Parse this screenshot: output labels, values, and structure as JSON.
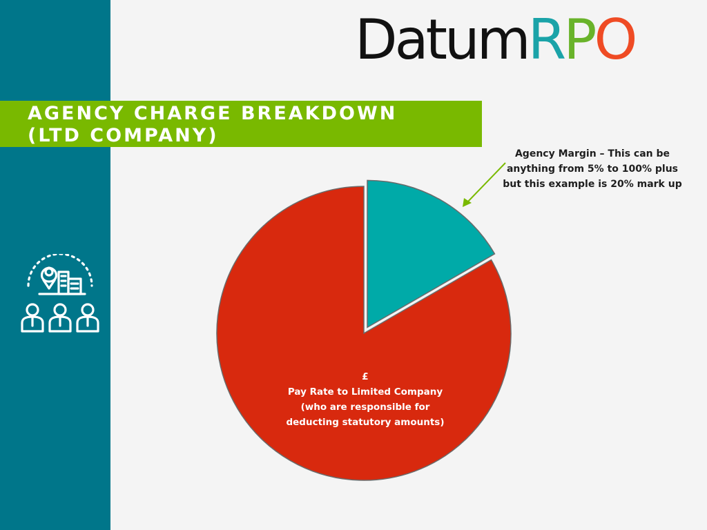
{
  "logo": {
    "part1": "Datum",
    "r": "R",
    "p": "P",
    "o": "O"
  },
  "title": {
    "line1": "AGENCY CHARGE BREAKDOWN",
    "line2": "(LTD COMPANY)"
  },
  "icon": "location-buildings-people-icon",
  "colors": {
    "sidebar": "#00768a",
    "banner": "#79b900",
    "pay_rate_slice": "#d8290e",
    "margin_slice": "#00aaa8",
    "arrow": "#79b900"
  },
  "chart_data": {
    "type": "pie",
    "slices": [
      {
        "name": "Agency Margin",
        "value": 16.67,
        "exploded": true,
        "color": "#00aaa8",
        "label_lines": [
          "Agency Margin – This can be",
          "anything from 5% to 100% plus",
          "but this example is 20% mark up"
        ]
      },
      {
        "name": "Pay Rate to Limited Company",
        "value": 83.33,
        "exploded": false,
        "color": "#d8290e",
        "label_lines": [
          "£",
          "Pay Rate to Limited Company",
          "(who are responsible for",
          "deducting statutory amounts)"
        ]
      }
    ],
    "start": "12 o'clock",
    "direction": "clockwise",
    "title": "",
    "legend": "none"
  }
}
